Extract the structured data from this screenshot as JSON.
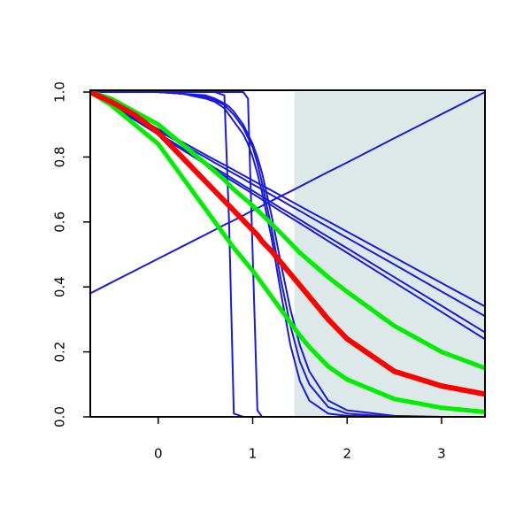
{
  "chart_data": {
    "type": "line",
    "x": [
      -0.72,
      -0.5,
      -0.25,
      0,
      0.25,
      0.5,
      0.6,
      0.7,
      0.75,
      0.8,
      0.9,
      0.95,
      1,
      1.05,
      1.1,
      1.2,
      1.3,
      1.4,
      1.5,
      1.6,
      1.8,
      2,
      2.5,
      3,
      3.46
    ],
    "xlim": [
      -0.72,
      3.46
    ],
    "ylim": [
      0,
      1
    ],
    "xticks": [
      0,
      1,
      2,
      3
    ],
    "yticks": [
      {
        "value": 0,
        "label": "0.0"
      },
      {
        "value": 0.2,
        "label": "0.2"
      },
      {
        "value": 0.4,
        "label": "0.4"
      },
      {
        "value": 0.6,
        "label": "0.6"
      },
      {
        "value": 0.8,
        "label": "0.8"
      },
      {
        "value": 1,
        "label": "1.0"
      }
    ],
    "shade": {
      "from": 1.44,
      "to": 3.46,
      "color": "#dde9e9"
    },
    "series": [
      {
        "color": "#1a1adb",
        "width": 2,
        "values": [
          1,
          1,
          1,
          1,
          1,
          1,
          1,
          0.99,
          0.6,
          0.01,
          0,
          0,
          0,
          0,
          0,
          0,
          0,
          0,
          0,
          0,
          0,
          0,
          0,
          0,
          0
        ]
      },
      {
        "color": "#1a1adb",
        "width": 2,
        "values": [
          1,
          1,
          1,
          1,
          1,
          1,
          1,
          1,
          1,
          1,
          1,
          0.98,
          0.5,
          0.02,
          0,
          0,
          0,
          0,
          0,
          0,
          0,
          0,
          0,
          0,
          0
        ]
      },
      {
        "color": "#1a1adb",
        "width": 2,
        "values": [
          1,
          1,
          1,
          1,
          0.995,
          0.98,
          0.97,
          0.95,
          0.93,
          0.91,
          0.87,
          0.84,
          0.8,
          0.75,
          0.69,
          0.55,
          0.38,
          0.22,
          0.11,
          0.05,
          0.01,
          0.003,
          0,
          0,
          0
        ]
      },
      {
        "color": "#1a1adb",
        "width": 2,
        "values": [
          1,
          1,
          1,
          1,
          0.995,
          0.985,
          0.975,
          0.96,
          0.945,
          0.93,
          0.89,
          0.86,
          0.83,
          0.78,
          0.72,
          0.58,
          0.42,
          0.28,
          0.17,
          0.1,
          0.03,
          0.01,
          0,
          0,
          0
        ]
      },
      {
        "color": "#1a1adb",
        "width": 2,
        "values": [
          1,
          1,
          1,
          1,
          0.995,
          0.99,
          0.98,
          0.965,
          0.955,
          0.94,
          0.9,
          0.87,
          0.84,
          0.8,
          0.75,
          0.62,
          0.47,
          0.33,
          0.22,
          0.14,
          0.05,
          0.02,
          0.003,
          0,
          0
        ]
      },
      {
        "color": "#1a1adb",
        "width": 2,
        "values": [
          1,
          0.965,
          0.926,
          0.886,
          0.847,
          0.807,
          0.791,
          0.776,
          0.768,
          0.76,
          0.744,
          0.736,
          0.728,
          0.72,
          0.712,
          0.697,
          0.681,
          0.665,
          0.649,
          0.633,
          0.602,
          0.57,
          0.491,
          0.412,
          0.34
        ]
      },
      {
        "color": "#1a1adb",
        "width": 2,
        "values": [
          1,
          0.964,
          0.922,
          0.881,
          0.84,
          0.799,
          0.782,
          0.766,
          0.757,
          0.749,
          0.733,
          0.724,
          0.716,
          0.708,
          0.7,
          0.683,
          0.667,
          0.65,
          0.634,
          0.617,
          0.584,
          0.551,
          0.469,
          0.386,
          0.31
        ]
      },
      {
        "color": "#1a1adb",
        "width": 2,
        "values": [
          1,
          0.961,
          0.917,
          0.873,
          0.828,
          0.784,
          0.766,
          0.749,
          0.74,
          0.731,
          0.713,
          0.704,
          0.696,
          0.687,
          0.678,
          0.66,
          0.642,
          0.625,
          0.607,
          0.589,
          0.554,
          0.519,
          0.43,
          0.342,
          0.26
        ]
      },
      {
        "color": "#1a1adb",
        "width": 2,
        "values": [
          1,
          0.96,
          0.914,
          0.869,
          0.823,
          0.778,
          0.76,
          0.742,
          0.732,
          0.723,
          0.705,
          0.696,
          0.687,
          0.678,
          0.669,
          0.651,
          0.632,
          0.614,
          0.596,
          0.578,
          0.541,
          0.505,
          0.414,
          0.323,
          0.239
        ]
      },
      {
        "color": "#1a1adb",
        "width": 2,
        "values": [
          0.38,
          0.413,
          0.45,
          0.487,
          0.524,
          0.561,
          0.576,
          0.591,
          0.598,
          0.605,
          0.62,
          0.628,
          0.635,
          0.642,
          0.65,
          0.665,
          0.68,
          0.694,
          0.709,
          0.724,
          0.754,
          0.783,
          0.858,
          0.932,
          1
        ]
      },
      {
        "color": "#00ee00",
        "width": 5,
        "values": [
          1,
          0.98,
          0.94,
          0.9,
          0.84,
          0.78,
          0.755,
          0.73,
          0.715,
          0.7,
          0.675,
          0.663,
          0.65,
          0.636,
          0.622,
          0.594,
          0.565,
          0.535,
          0.505,
          0.48,
          0.43,
          0.385,
          0.28,
          0.2,
          0.15
        ]
      },
      {
        "color": "#00ee00",
        "width": 5,
        "values": [
          1,
          0.96,
          0.9,
          0.84,
          0.74,
          0.64,
          0.6,
          0.56,
          0.54,
          0.52,
          0.485,
          0.467,
          0.45,
          0.43,
          0.41,
          0.37,
          0.33,
          0.29,
          0.25,
          0.215,
          0.155,
          0.115,
          0.055,
          0.028,
          0.015
        ]
      },
      {
        "color": "#ff0000",
        "width": 6,
        "values": [
          1,
          0.97,
          0.93,
          0.875,
          0.8,
          0.725,
          0.695,
          0.665,
          0.65,
          0.635,
          0.605,
          0.59,
          0.575,
          0.56,
          0.54,
          0.51,
          0.475,
          0.44,
          0.405,
          0.37,
          0.3,
          0.24,
          0.14,
          0.095,
          0.07
        ]
      }
    ]
  }
}
